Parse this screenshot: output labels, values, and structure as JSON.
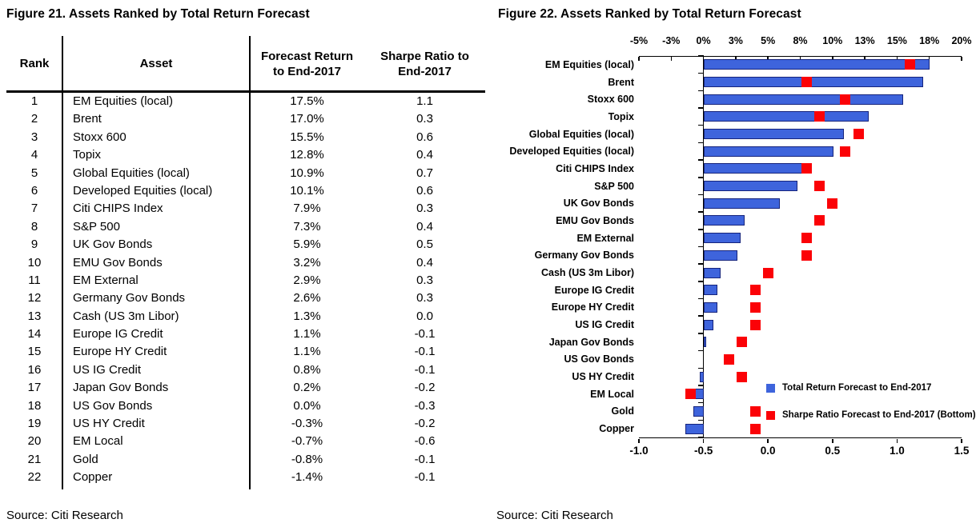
{
  "figure21": {
    "title": "Figure 21. Assets Ranked by Total Return Forecast",
    "col_rank": "Rank",
    "col_asset": "Asset",
    "col_return_l1": "Forecast Return",
    "col_return_l2": "to End-2017",
    "col_sharpe_l1": "Sharpe Ratio to",
    "col_sharpe_l2": "End-2017",
    "rows": [
      {
        "rank": "1",
        "asset": "EM Equities (local)",
        "ret": "17.5%",
        "sharpe": "1.1"
      },
      {
        "rank": "2",
        "asset": "Brent",
        "ret": "17.0%",
        "sharpe": "0.3"
      },
      {
        "rank": "3",
        "asset": "Stoxx 600",
        "ret": "15.5%",
        "sharpe": "0.6"
      },
      {
        "rank": "4",
        "asset": "Topix",
        "ret": "12.8%",
        "sharpe": "0.4"
      },
      {
        "rank": "5",
        "asset": "Global Equities (local)",
        "ret": "10.9%",
        "sharpe": "0.7"
      },
      {
        "rank": "6",
        "asset": "Developed Equities (local)",
        "ret": "10.1%",
        "sharpe": "0.6"
      },
      {
        "rank": "7",
        "asset": "Citi CHIPS Index",
        "ret": "7.9%",
        "sharpe": "0.3"
      },
      {
        "rank": "8",
        "asset": "S&P 500",
        "ret": "7.3%",
        "sharpe": "0.4"
      },
      {
        "rank": "9",
        "asset": "UK Gov Bonds",
        "ret": "5.9%",
        "sharpe": "0.5"
      },
      {
        "rank": "10",
        "asset": "EMU Gov Bonds",
        "ret": "3.2%",
        "sharpe": "0.4"
      },
      {
        "rank": "11",
        "asset": "EM External",
        "ret": "2.9%",
        "sharpe": "0.3"
      },
      {
        "rank": "12",
        "asset": "Germany Gov Bonds",
        "ret": "2.6%",
        "sharpe": "0.3"
      },
      {
        "rank": "13",
        "asset": "Cash (US 3m Libor)",
        "ret": "1.3%",
        "sharpe": "0.0"
      },
      {
        "rank": "14",
        "asset": "Europe IG Credit",
        "ret": "1.1%",
        "sharpe": "-0.1"
      },
      {
        "rank": "15",
        "asset": "Europe HY Credit",
        "ret": "1.1%",
        "sharpe": "-0.1"
      },
      {
        "rank": "16",
        "asset": "US IG Credit",
        "ret": "0.8%",
        "sharpe": "-0.1"
      },
      {
        "rank": "17",
        "asset": "Japan Gov Bonds",
        "ret": "0.2%",
        "sharpe": "-0.2"
      },
      {
        "rank": "18",
        "asset": "US Gov Bonds",
        "ret": "0.0%",
        "sharpe": "-0.3"
      },
      {
        "rank": "19",
        "asset": "US HY Credit",
        "ret": "-0.3%",
        "sharpe": "-0.2"
      },
      {
        "rank": "20",
        "asset": "EM Local",
        "ret": "-0.7%",
        "sharpe": "-0.6"
      },
      {
        "rank": "21",
        "asset": "Gold",
        "ret": "-0.8%",
        "sharpe": "-0.1"
      },
      {
        "rank": "22",
        "asset": "Copper",
        "ret": "-1.4%",
        "sharpe": "-0.1"
      }
    ],
    "source": "Source: Citi Research"
  },
  "figure22": {
    "title": "Figure 22. Assets Ranked by Total Return Forecast",
    "legend": [
      {
        "label": "Total Return Forecast to End-2017"
      },
      {
        "label": "Sharpe Ratio Forecast to End-2017 (Bottom)"
      }
    ],
    "source": "Source: Citi Research"
  },
  "chart_data": {
    "type": "bar",
    "orientation": "horizontal",
    "title": "Figure 22. Assets Ranked by Total Return Forecast",
    "categories": [
      "EM Equities (local)",
      "Brent",
      "Stoxx 600",
      "Topix",
      "Global Equities (local)",
      "Developed Equities (local)",
      "Citi CHIPS Index",
      "S&P 500",
      "UK Gov Bonds",
      "EMU Gov Bonds",
      "EM External",
      "Germany Gov Bonds",
      "Cash (US 3m Libor)",
      "Europe IG Credit",
      "Europe HY Credit",
      "US IG Credit",
      "Japan Gov Bonds",
      "US Gov Bonds",
      "US HY Credit",
      "EM Local",
      "Gold",
      "Copper"
    ],
    "series": [
      {
        "name": "Total Return Forecast to End-2017",
        "style": "bar",
        "axis": "top",
        "unit": "%",
        "values": [
          17.5,
          17.0,
          15.5,
          12.8,
          10.9,
          10.1,
          7.9,
          7.3,
          5.9,
          3.2,
          2.9,
          2.6,
          1.3,
          1.1,
          1.1,
          0.8,
          0.2,
          0.0,
          -0.3,
          -0.7,
          -0.8,
          -1.4
        ]
      },
      {
        "name": "Sharpe Ratio Forecast to End-2017 (Bottom)",
        "style": "square-marker",
        "axis": "bottom",
        "values": [
          1.1,
          0.3,
          0.6,
          0.4,
          0.7,
          0.6,
          0.3,
          0.4,
          0.5,
          0.4,
          0.3,
          0.3,
          0.0,
          -0.1,
          -0.1,
          -0.1,
          -0.2,
          -0.3,
          -0.2,
          -0.6,
          -0.1,
          -0.1
        ]
      }
    ],
    "top_axis": {
      "min": -5,
      "max": 20,
      "step": 2.5,
      "tick_labels": [
        "-5%",
        "-3%",
        "0%",
        "3%",
        "5%",
        "8%",
        "10%",
        "13%",
        "15%",
        "18%",
        "20%"
      ]
    },
    "bottom_axis": {
      "min": -1.0,
      "max": 1.5,
      "step": 0.5,
      "tick_labels": [
        "-1.0",
        "-0.5",
        "0.0",
        "0.5",
        "1.0",
        "1.5"
      ]
    },
    "bar_fill": "#3E64DC",
    "bar_border": "#16247C",
    "marker_color": "#FB0207",
    "axis_color": "#000000",
    "grid": false,
    "legend_position": "inside-right"
  }
}
